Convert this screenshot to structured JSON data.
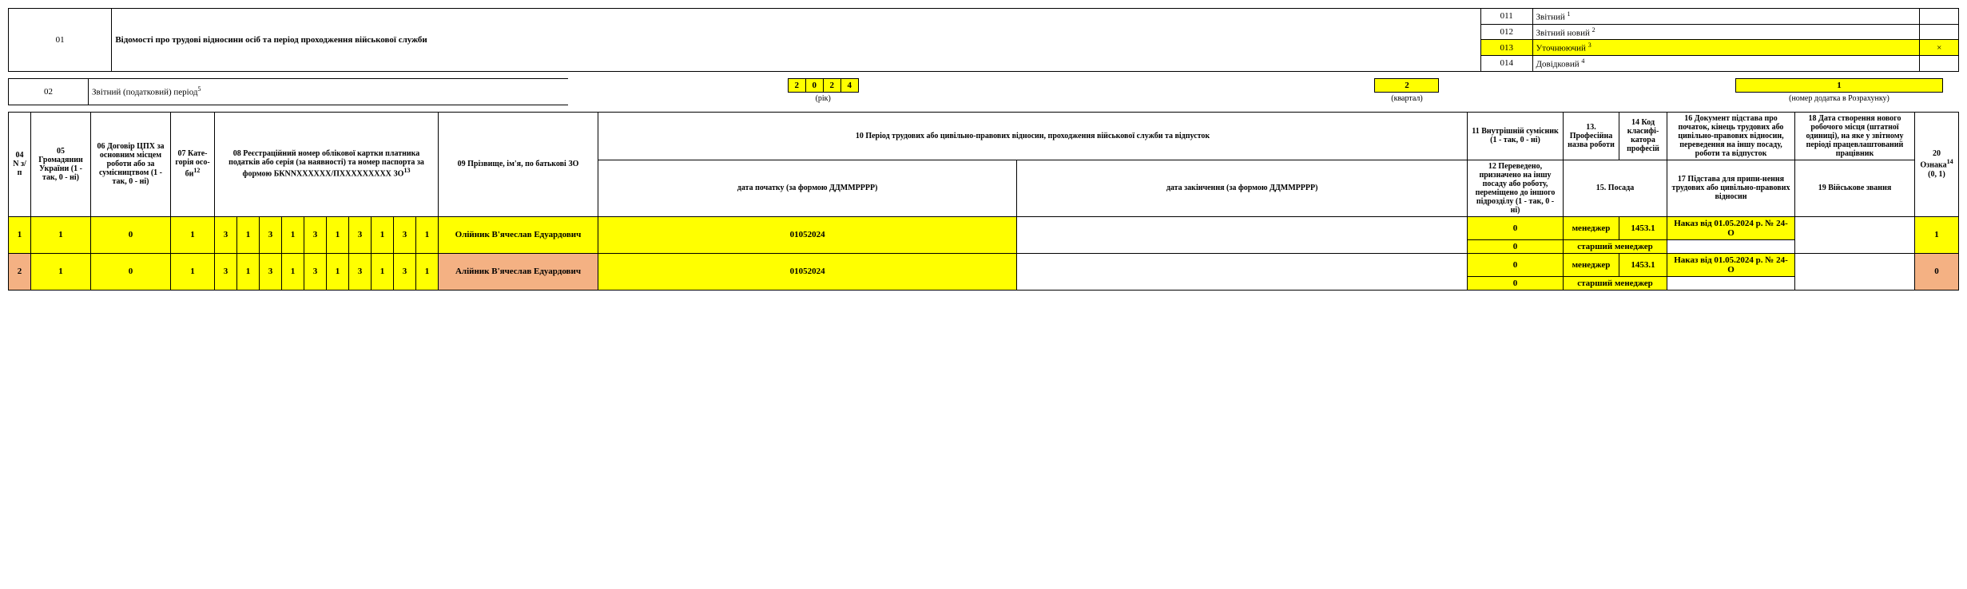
{
  "section1": {
    "code": "01",
    "title": "Відомості  про трудові відносини осіб та період проходження військової служби",
    "types": [
      {
        "code": "011",
        "label": "Звітний",
        "sup": "1",
        "hl": false,
        "mark": ""
      },
      {
        "code": "012",
        "label": "Звітний новий",
        "sup": "2",
        "hl": false,
        "mark": ""
      },
      {
        "code": "013",
        "label": "Уточнюючий",
        "sup": "3",
        "hl": true,
        "mark": "×"
      },
      {
        "code": "014",
        "label": "Довідковий",
        "sup": "4",
        "hl": false,
        "mark": ""
      }
    ]
  },
  "section2": {
    "code": "02",
    "title": "Звітний (податковий) період",
    "title_sup": "5",
    "year_digits": [
      "2",
      "0",
      "2",
      "4"
    ],
    "year_label": "(рік)",
    "quarter": "2",
    "quarter_label": "(квартал)",
    "appendix": "1",
    "appendix_label": "(номер додатка в Розрахунку)"
  },
  "headers": {
    "c04": "04 N з/п",
    "c05": "05  Громадянин України\n(1 - так, 0 - ні)",
    "c06": "06  Договір ЦПХ за основним місцем роботи або за сумісництвом\n(1 - так,  0 - ні)",
    "c07": "07 Кате-горія осо-би",
    "c07_sup": "12",
    "c08": "08   Реєстраційний номер облікової картки платника податків або серія (за наявності)  та номер паспорта за формою БКNNXXXXXX/ПXXXXXXXXX ЗО",
    "c08_sup": "13",
    "c09": "09  Прізвище, ім'я, по батькові ЗО",
    "c10": "10  Період трудових або цивільно-правових відносин, проходження військової служби та відпусток",
    "c10a": "дата початку (за формою ДДММРРРР)",
    "c10b": "дата закінчення (за формою ДДММРРРР)",
    "c11": "11 Внутрішній сумісник\n(1 - так,  0 -  ні)",
    "c12": "12  Переведено, призначено на іншу посаду або роботу, переміщено до іншого підрозділу\n(1 - так,  0 -  ні)",
    "c13": "13. Професійна назва роботи",
    "c14": "14 Код класифі-катора професій",
    "c15": "15. Посада",
    "c16": "16 Документ підстава про початок, кінець трудових або цивільно-правових відносин, переведення на іншу посаду, роботи та відпусток",
    "c17": "17 Підстава для припи-нення трудових або цивільно-правових відносин",
    "c18": "18 Дата створення нового робочого місця (штатної одиниці), на яке  у звітному періоді працевлаштований працівник",
    "c19": "19 Військове звання",
    "c20": "20 Ознака",
    "c20_sup": "14",
    "c20_sub": "(0, 1)"
  },
  "rows": [
    {
      "n": "1",
      "hl_n": "yellow",
      "citizen": "1",
      "cph": "0",
      "cat": "1",
      "reg": [
        "3",
        "1",
        "3",
        "1",
        "3",
        "1",
        "3",
        "1",
        "3",
        "1"
      ],
      "pib": "Олійник В'ячеслав Едуардович",
      "pib_hl": "yellow",
      "date_start": "01052024",
      "date_end": "",
      "r11": "0",
      "r11_hl": "yellow",
      "r12": "0",
      "r12_hl": "yellow",
      "r13": "менеджер",
      "r14": "1453.1",
      "r15": "старший менеджер",
      "r16": "Наказ від 01.05.2024 р. № 24-О",
      "r17": "",
      "r18": "",
      "r19": "",
      "r20": "1",
      "r20_hl": "yellow"
    },
    {
      "n": "2",
      "hl_n": "orange",
      "citizen": "1",
      "cph": "0",
      "cat": "1",
      "reg": [
        "3",
        "1",
        "3",
        "1",
        "3",
        "1",
        "3",
        "1",
        "3",
        "1"
      ],
      "pib": "Алійник В'ячеслав Едуардович",
      "pib_hl": "orange",
      "date_start": "01052024",
      "date_end": "",
      "r11": "0",
      "r11_hl": "yellow",
      "r12": "0",
      "r12_hl": "yellow",
      "r13": "менеджер",
      "r14": "1453.1",
      "r15": "старший менеджер",
      "r16": "Наказ від 01.05.2024 р. № 24-О",
      "r17": "",
      "r18": "",
      "r19": "",
      "r20": "0",
      "r20_hl": "orange"
    }
  ]
}
